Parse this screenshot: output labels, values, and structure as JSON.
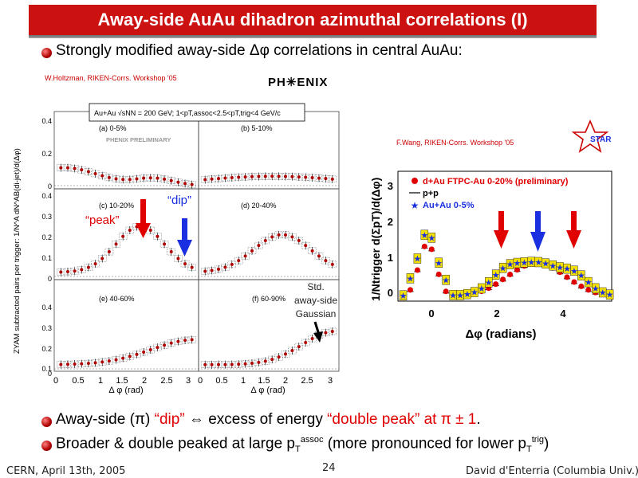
{
  "slide": {
    "title": "Away-side AuAu dihadron azimuthal correlations (I)",
    "bullet1": "Strongly modified away-side Δφ correlations in central AuAu:",
    "bullet2": {
      "a": "Away-side (π) ",
      "b": "“dip”",
      "c": " ⇔ excess of energy ",
      "d": "“double peak” at π ± 1",
      "e": "."
    },
    "bullet3": {
      "a": "Broader & double peaked at large p",
      "sub1": "T",
      "sup1": "assoc",
      "b": " (more pronounced for lower p",
      "sub2": "T",
      "sup2": "trig",
      "c": ")"
    },
    "footer_left": "CERN, April 13th, 2005",
    "footer_center": "24",
    "footer_right": "David d'Enterria (Columbia Univ.)"
  },
  "left_figure": {
    "credit": "W.Holtzman, RIKEN-Corrs. Workshop '05",
    "logo": "PH✳ENIX",
    "ylabel": "ZYAM subtracted pairs per trigger: 1/N^A dN^AB(di-jet)/d(Δφ)",
    "header": "Au+Au √sNN = 200 GeV; 1<pT,assoc<2.5<pT,trig<4 GeV/c",
    "preliminary": "PHENIX PRELIMINARY",
    "panels": [
      "(a) 0-5%",
      "(b) 5-10%",
      "(c) 10-20%",
      "(d) 20-40%",
      "(e) 40-60%",
      "(f) 60-90%"
    ],
    "row1_ticks": [
      "0.4",
      "0.2",
      "0"
    ],
    "row2_ticks": [
      "0.4",
      "0.3",
      "0.2",
      "0.1",
      "0"
    ],
    "row3_ticks": [
      "0.4",
      "0.3",
      "0.2",
      "0.1",
      "0"
    ],
    "xticks_left": [
      "0",
      "0.5",
      "1",
      "1.5",
      "2",
      "2.5",
      "3"
    ],
    "xticks_right": [
      "0",
      "0.5",
      "1",
      "1.5",
      "2",
      "2.5",
      "3"
    ],
    "xlabel": "Δ φ (rad)",
    "annot_dip": "“dip”",
    "annot_peak": "“peak”",
    "annot_std": [
      "Std.",
      "away-side",
      "Gaussian"
    ]
  },
  "right_figure": {
    "credit": "F.Wang, RIKEN-Corrs. Workshop '05",
    "logo": "STAR",
    "ylabel": "1/Ntrigger d(ΣpT)/d(Δφ)",
    "xlabel": "Δφ (radians)",
    "yticks": [
      "3",
      "2",
      "1",
      "0"
    ],
    "xticks": [
      "0",
      "2",
      "4"
    ],
    "legend": [
      "d+Au FTPC-Au 0-20% (preliminary)",
      "p+p",
      "Au+Au 0-5%"
    ]
  },
  "colors": {
    "title_bg": "#cc1111",
    "accent_red": "#e00000",
    "arrow_blue": "#1a2fe0",
    "star_fill": "#f5e100"
  }
}
